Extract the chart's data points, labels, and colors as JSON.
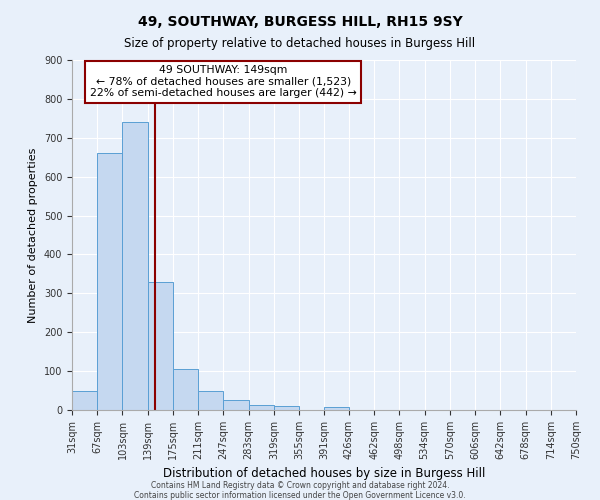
{
  "title": "49, SOUTHWAY, BURGESS HILL, RH15 9SY",
  "subtitle": "Size of property relative to detached houses in Burgess Hill",
  "xlabel": "Distribution of detached houses by size in Burgess Hill",
  "ylabel": "Number of detached properties",
  "bar_color": "#c5d8f0",
  "bar_edge_color": "#5a9fd4",
  "bg_color": "#e8f0fa",
  "grid_color": "#ffffff",
  "bin_edges": [
    31,
    67,
    103,
    139,
    175,
    211,
    247,
    283,
    319,
    355,
    391,
    426,
    462,
    498,
    534,
    570,
    606,
    642,
    678,
    714,
    750
  ],
  "bar_heights": [
    50,
    660,
    740,
    330,
    105,
    50,
    27,
    13,
    10,
    0,
    7,
    0,
    0,
    0,
    0,
    0,
    0,
    0,
    0,
    0
  ],
  "marker_value": 149,
  "marker_color": "#8b0000",
  "annotation_title": "49 SOUTHWAY: 149sqm",
  "annotation_line1": "← 78% of detached houses are smaller (1,523)",
  "annotation_line2": "22% of semi-detached houses are larger (442) →",
  "annotation_box_color": "#ffffff",
  "annotation_border_color": "#8b0000",
  "ylim": [
    0,
    900
  ],
  "yticks": [
    0,
    100,
    200,
    300,
    400,
    500,
    600,
    700,
    800,
    900
  ],
  "footnote1": "Contains HM Land Registry data © Crown copyright and database right 2024.",
  "footnote2": "Contains public sector information licensed under the Open Government Licence v3.0."
}
